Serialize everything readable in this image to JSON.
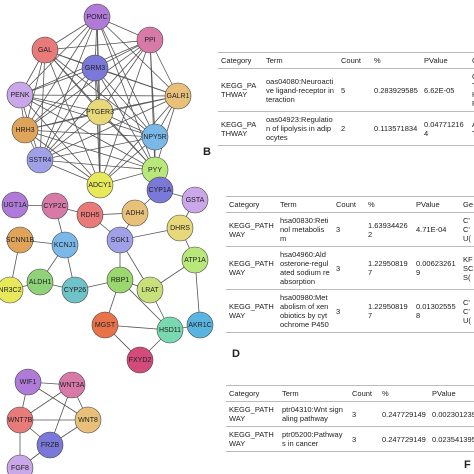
{
  "network_a": {
    "nodes": [
      "POMC",
      "PPI",
      "GAL",
      "GALR1",
      "GRM3",
      "PENK",
      "PTGER3",
      "HRH3",
      "NPY5R",
      "SSTR4",
      "PYY",
      "ADCY1"
    ]
  },
  "table_b": {
    "label": "B",
    "widths": [
      45,
      75,
      33,
      50,
      48,
      30
    ],
    "rows": [
      [
        "Category",
        "Term",
        "Count",
        "%",
        "PValue",
        "Gen"
      ],
      [
        "KEGG_PATHWAY",
        "oas04080:Neuroactive ligand-receptor interaction",
        "5",
        "0.283929585",
        "6.62E-05",
        "GR: PT( GAI HRI NP"
      ],
      [
        "KEGG_PATHWAY",
        "oas04923:Regulation of lipolysis in adipocytes",
        "2",
        "0.113571834",
        "0.047712164",
        "ADC PTC"
      ]
    ]
  },
  "network_c": {
    "nodes": [
      "UGT1A",
      "CYP2C",
      "RDH5",
      "ADH4",
      "CYP1A",
      "GSTA",
      "DHRS",
      "SCNN1B",
      "KCNJ1",
      "SGK1",
      "ATP1A",
      "NR3C2",
      "ALDH1",
      "CYP26",
      "RBP1",
      "LRAT",
      "HSD11",
      "MGST",
      "FXYD2",
      "AKR1C"
    ]
  },
  "table_d": {
    "label": "D",
    "widths": [
      51,
      56,
      32,
      48,
      47,
      20
    ],
    "rows": [
      [
        "Category",
        "Term",
        "Count",
        "%",
        "PValue",
        "Ge"
      ],
      [
        "KEGG_PATHWAY",
        "hsa00830:Retinol metabolism",
        "3",
        "1.639344262",
        "4.71E-04",
        "C' C' U("
      ],
      [
        "KEGG_PATHWAY",
        "hsa04960:Aldosterone-regulated sodium reabsorption",
        "3",
        "1.229508197",
        "0.006232619",
        "KF SC S("
      ],
      [
        "KEGG_PATHWAY",
        "hsa00980:Metabolism of xenobiotics by cytochrome P450",
        "3",
        "1.229508197",
        "0.013025558",
        "C' C' U("
      ]
    ]
  },
  "network_e": {
    "nodes": [
      "WIF1",
      "WNT3A",
      "WNT7B",
      "WNT8",
      "FRZB",
      "FGF8"
    ]
  },
  "table_f": {
    "label": "F",
    "widths": [
      53,
      70,
      30,
      50,
      50,
      20
    ],
    "rows": [
      [
        "Category",
        "Term",
        "Count",
        "%",
        "PValue",
        ""
      ],
      [
        "KEGG_PATHWAY",
        "ptr04310:Wnt signaling pathway",
        "3",
        "0.247729149",
        "0.002301239",
        ""
      ],
      [
        "KEGG_PATHWAY",
        "ptr05200:Pathways in cancer",
        "3",
        "0.247729149",
        "0.023541395",
        ""
      ]
    ]
  }
}
